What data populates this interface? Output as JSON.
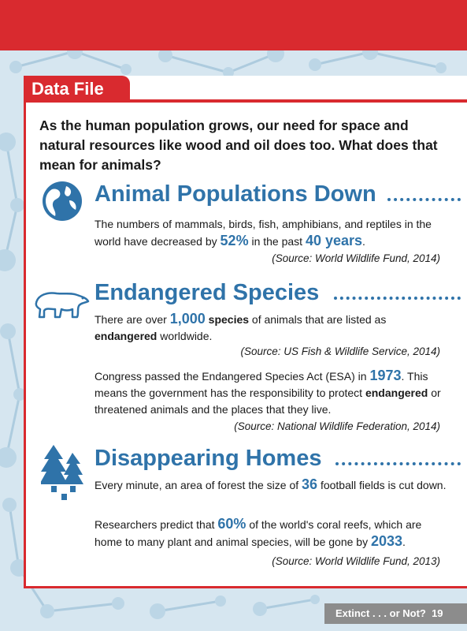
{
  "heading": "Data File",
  "intro": "As the human population grows, our need for space and natural resources like wood and oil does too. What does that mean for animals?",
  "sections": {
    "populations": {
      "title": "Animal Populations Down",
      "text": {
        "part1": "The numbers of mammals, birds, fish, amphibians, and reptiles in the world have decreased by ",
        "stat1": "52%",
        "part2": " in the past ",
        "stat2": "40 years",
        "part3": "."
      },
      "source": "(Source: World Wildlife Fund, 2014)"
    },
    "endangered": {
      "title": "Endangered Species",
      "p1": {
        "part1": "There are over ",
        "stat1": "1,000",
        "part2": " ",
        "bold1": "species",
        "part3": " of animals that are listed as ",
        "bold2": "endangered",
        "part4": " worldwide."
      },
      "source1": "(Source: US Fish & Wildlife Service, 2014)",
      "p2": {
        "part1": "Congress passed the Endangered Species Act (ESA) in ",
        "stat1": "1973",
        "part2": ". This means the government has the responsibility to protect ",
        "bold1": "endangered",
        "part3": " or threatened animals and the places that they live."
      },
      "source2": "(Source: National Wildlife Federation, 2014)"
    },
    "homes": {
      "title": "Disappearing Homes",
      "p1": {
        "part1": "Every minute, an area of forest the size of ",
        "stat1": "36",
        "part2": " football fields is cut down."
      },
      "p2": {
        "part1": "Researchers predict that ",
        "stat1": "60%",
        "part2": " of the world's coral reefs, which are home to many plant and animal species, will be gone by ",
        "stat2": "2033",
        "part3": "."
      },
      "source": "(Source: World Wildlife Fund, 2013)"
    }
  },
  "footer": {
    "title": "Extinct . . . or Not?",
    "page": "19"
  },
  "icons": [
    "globe-icon",
    "polar-bear-icon",
    "trees-icon"
  ],
  "colors": {
    "red": "#d92a2f",
    "blue": "#2f73a9",
    "background": "#d6e6f0"
  }
}
